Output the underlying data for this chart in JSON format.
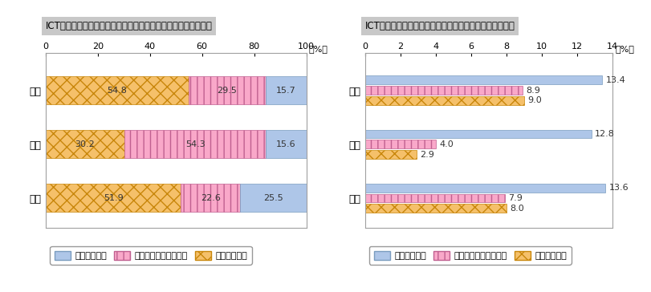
{
  "chart1": {
    "title": "ICT産業（インターネット関連）の市場規模・レイヤー別構成比",
    "categories": [
      "世界",
      "日本",
      "米国"
    ],
    "terminal": [
      54.8,
      30.2,
      51.9
    ],
    "network": [
      29.5,
      54.3,
      22.6
    ],
    "upper": [
      15.7,
      15.6,
      25.5
    ],
    "xlim": [
      0,
      100
    ],
    "xticks": [
      0,
      20,
      40,
      60,
      80,
      100
    ],
    "xlabel": "（%）"
  },
  "chart2": {
    "title": "ICT産業（インターネット関連）のレイヤー別成長性予測",
    "categories": [
      "世界",
      "日本",
      "米国"
    ],
    "upper": [
      13.4,
      12.8,
      13.6
    ],
    "network": [
      8.9,
      4.0,
      7.9
    ],
    "terminal": [
      9.0,
      2.9,
      8.0
    ],
    "xlim": [
      0,
      14
    ],
    "xticks": [
      0,
      2,
      4,
      6,
      8,
      10,
      12,
      14
    ],
    "xlabel": "（%）"
  },
  "colors": {
    "upper_fill": "#aec6e8",
    "upper_edge": "#7a9cbf",
    "network_fill": "#f9a8c9",
    "network_edge": "#c06090",
    "terminal_fill": "#f5c06a",
    "terminal_edge": "#c8860a",
    "title_bg": "#c8c8c8",
    "bar_border": "#808080"
  },
  "legend": {
    "upper_label": "上位レイヤー",
    "network_label": "ネットワークレイヤー",
    "terminal_label": "端末レイヤー"
  }
}
